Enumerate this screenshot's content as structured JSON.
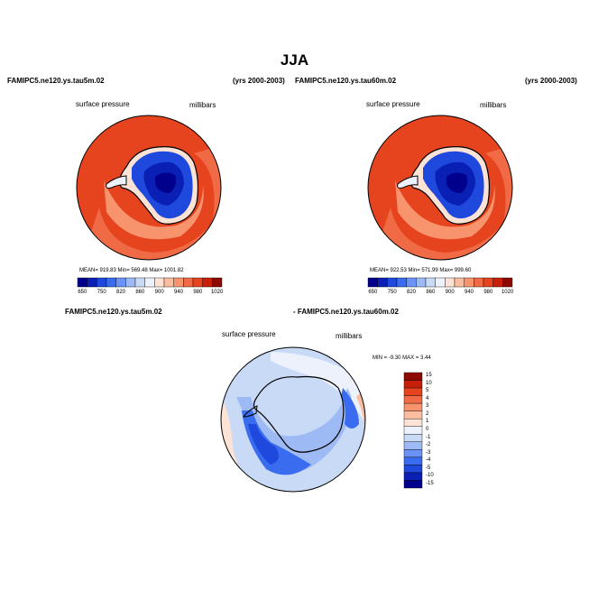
{
  "figure": {
    "title": "JJA",
    "panel1": {
      "case": "FAMIPC5.ne120.ys.tau5m.02",
      "years": "(yrs 2000-2003)",
      "var_label": "surface pressure",
      "units": "millibars",
      "stats": "MEAN= 919.83  Min= 569.48  Max= 1001.82"
    },
    "panel2": {
      "case": "FAMIPC5.ne120.ys.tau60m.02",
      "years": "(yrs 2000-2003)",
      "var_label": "surface pressure",
      "units": "millibars",
      "stats": "MEAN= 922.53  Min= 571.99  Max= 999.60"
    },
    "diff": {
      "case_a": "FAMIPC5.ne120.ys.tau5m.02",
      "case_b": "- FAMIPC5.ne120.ys.tau60m.02",
      "var_label": "surface pressure",
      "units": "millibars",
      "stats": "MIN =   -9.30  MAX =    3.44"
    }
  },
  "chart_data": [
    {
      "type": "heatmap",
      "title": "FAMIPC5.ne120.ys.tau5m.02",
      "variable": "surface pressure",
      "units": "millibars",
      "mean": 919.83,
      "min": 569.48,
      "max": 1001.82,
      "colorbar": {
        "levels": [
          "650",
          "750",
          "820",
          "860",
          "900",
          "940",
          "980",
          "1020"
        ],
        "colors": [
          "#00008c",
          "#0a1fb4",
          "#1f48dc",
          "#3a6cf0",
          "#6b93f5",
          "#9ebaf5",
          "#c9daf7",
          "#ecf1fb",
          "#fde3d5",
          "#fbbd9f",
          "#f7946e",
          "#f06a45",
          "#e6431f",
          "#c81f0a",
          "#8c0a00"
        ]
      }
    },
    {
      "type": "heatmap",
      "title": "FAMIPC5.ne120.ys.tau60m.02",
      "variable": "surface pressure",
      "units": "millibars",
      "mean": 922.53,
      "min": 571.99,
      "max": 999.6,
      "colorbar": {
        "levels": [
          "650",
          "750",
          "820",
          "860",
          "900",
          "940",
          "980",
          "1020"
        ],
        "colors": [
          "#00008c",
          "#0a1fb4",
          "#1f48dc",
          "#3a6cf0",
          "#6b93f5",
          "#9ebaf5",
          "#c9daf7",
          "#ecf1fb",
          "#fde3d5",
          "#fbbd9f",
          "#f7946e",
          "#f06a45",
          "#e6431f",
          "#c81f0a",
          "#8c0a00"
        ]
      }
    },
    {
      "type": "heatmap",
      "title": "FAMIPC5.ne120.ys.tau5m.02 - FAMIPC5.ne120.ys.tau60m.02",
      "variable": "surface pressure",
      "units": "millibars",
      "min": -9.3,
      "max": 3.44,
      "colorbar": {
        "levels": [
          "15",
          "10",
          "5",
          "4",
          "3",
          "2",
          "1",
          "0",
          "-1",
          "-2",
          "-3",
          "-4",
          "-5",
          "-10",
          "-15"
        ],
        "colors": [
          "#8c0a00",
          "#c81f0a",
          "#e6431f",
          "#f06a45",
          "#f7946e",
          "#fbbd9f",
          "#fde3d5",
          "#ecf1fb",
          "#c9daf7",
          "#9ebaf5",
          "#6b93f5",
          "#3a6cf0",
          "#1f48dc",
          "#0a1fb4",
          "#00008c"
        ]
      }
    }
  ]
}
